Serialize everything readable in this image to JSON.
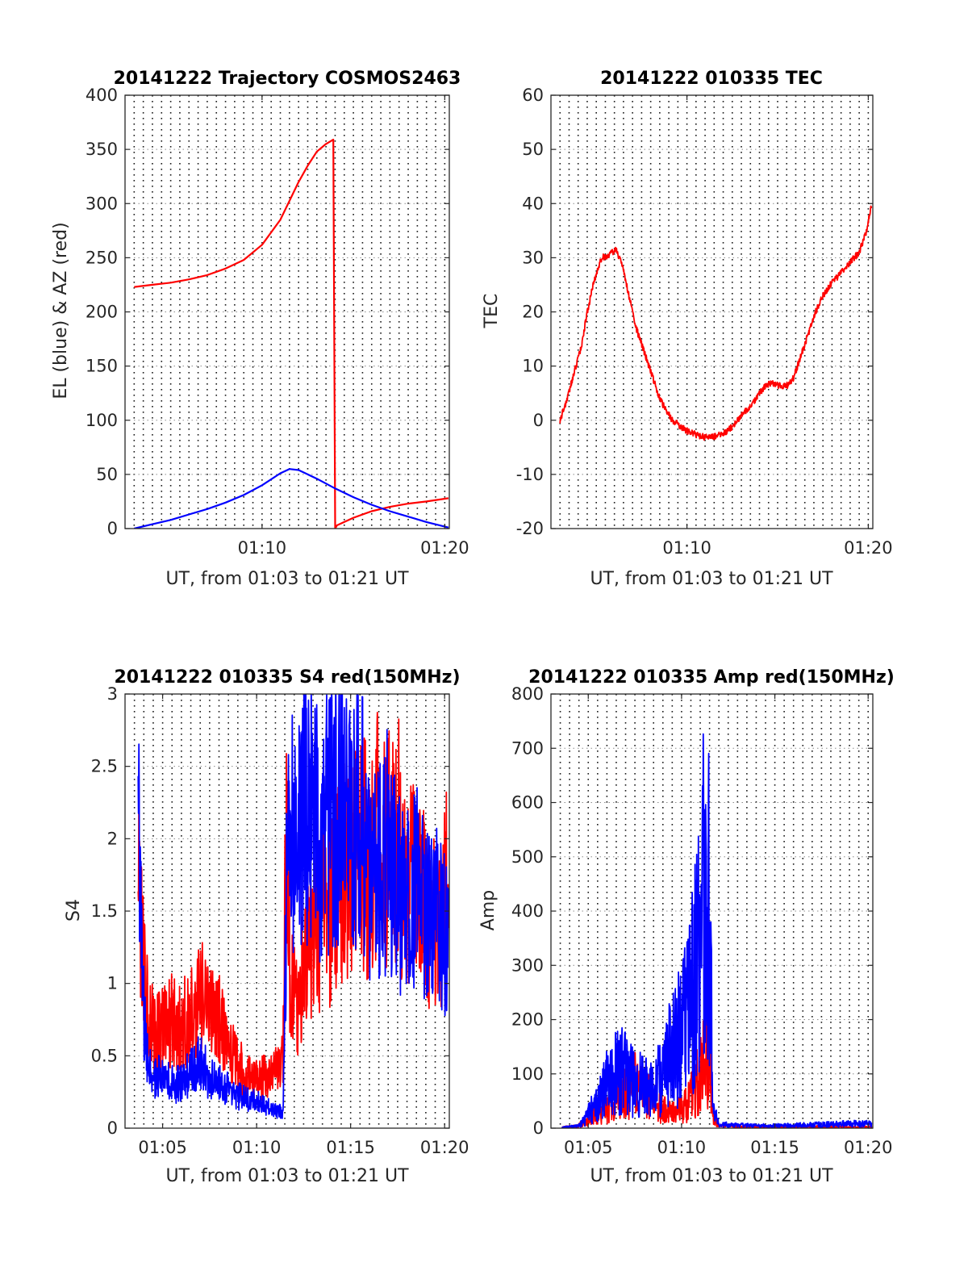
{
  "chart_data": [
    {
      "type": "line",
      "title": "20141222 Trajectory COSMOS2463",
      "xlabel": "UT, from 01:03 to 01:21 UT",
      "ylabel": "EL (blue) & AZ (red)",
      "xlim": [
        62.5,
        80.25
      ],
      "ylim": [
        0,
        400
      ],
      "xticks": [
        70,
        80
      ],
      "xtick_labels": [
        "01:10",
        "01:20"
      ],
      "yticks": [
        0,
        50,
        100,
        150,
        200,
        250,
        300,
        350,
        400
      ],
      "ytick_labels": [
        "0",
        "50",
        "100",
        "150",
        "200",
        "250",
        "300",
        "350",
        "400"
      ],
      "grid": "dotted vertical every 30 s, dotted horizontal at y ticks",
      "series": [
        {
          "color": "#ff0000",
          "x": [
            63,
            64,
            65,
            66,
            67,
            68,
            69,
            70,
            71,
            72,
            72.5,
            73,
            73.5,
            73.9,
            74.0,
            74.1,
            75,
            76,
            77,
            78,
            79,
            80.2
          ],
          "y": [
            223,
            225,
            227,
            230,
            234,
            240,
            248,
            262,
            285,
            320,
            335,
            348,
            355,
            359,
            0,
            3,
            10,
            16,
            20,
            23,
            25,
            28
          ]
        },
        {
          "color": "#0000ff",
          "x": [
            63,
            64,
            65,
            66,
            67,
            68,
            69,
            70,
            71,
            71.5,
            72,
            73,
            74,
            75,
            76,
            77,
            78,
            79,
            80.2
          ],
          "y": [
            0,
            4,
            8,
            13,
            18,
            24,
            31,
            40,
            51,
            55,
            54,
            46,
            37,
            29,
            22,
            16,
            11,
            6,
            1
          ]
        }
      ]
    },
    {
      "type": "line",
      "title": "20141222 010335 TEC",
      "xlabel": "UT, from 01:03 to 01:21 UT",
      "ylabel": "TEC",
      "xlim": [
        62.5,
        80.25
      ],
      "ylim": [
        -20,
        60
      ],
      "xticks": [
        70,
        80
      ],
      "xtick_labels": [
        "01:10",
        "01:20"
      ],
      "yticks": [
        -20,
        -10,
        0,
        10,
        20,
        30,
        40,
        50,
        60
      ],
      "ytick_labels": [
        "-20",
        "-10",
        "0",
        "10",
        "20",
        "30",
        "40",
        "50",
        "60"
      ],
      "grid": "dotted vertical every 30 s, dotted horizontal at y ticks",
      "series": [
        {
          "color": "#ff0000",
          "x": [
            63.0,
            63.4,
            63.8,
            64.2,
            64.5,
            64.9,
            65.3,
            65.7,
            66.1,
            66.4,
            66.8,
            67.2,
            67.6,
            68.0,
            68.4,
            68.8,
            69.2,
            69.6,
            70.0,
            70.4,
            70.8,
            71.2,
            71.6,
            72.0,
            72.4,
            72.8,
            73.2,
            73.6,
            74.0,
            74.4,
            74.8,
            75.2,
            75.6,
            75.9,
            76.3,
            76.7,
            77.1,
            77.5,
            77.9,
            78.3,
            78.7,
            79.1,
            79.5,
            79.9,
            80.2
          ],
          "y": [
            0,
            4,
            9,
            14,
            20,
            26,
            30,
            30.5,
            31.5,
            29,
            23,
            17,
            13,
            9,
            5,
            2,
            0,
            -1,
            -2,
            -2.5,
            -3,
            -3.2,
            -3,
            -2.5,
            -1.5,
            0,
            1.5,
            3,
            5,
            6.5,
            6.8,
            6.2,
            6.5,
            8,
            12,
            16,
            20,
            23,
            25,
            26.5,
            28,
            29.5,
            31,
            35,
            40
          ]
        }
      ]
    },
    {
      "type": "line",
      "title": "20141222 010335 S4 red(150MHz)",
      "xlabel": "UT, from 01:03 to 01:21 UT",
      "ylabel": "S4",
      "xlim": [
        63.0,
        80.25
      ],
      "ylim": [
        0,
        3
      ],
      "xticks": [
        65,
        70,
        75,
        80
      ],
      "xtick_labels": [
        "01:05",
        "01:10",
        "01:15",
        "01:20"
      ],
      "yticks": [
        0,
        0.5,
        1,
        1.5,
        2,
        2.5,
        3
      ],
      "ytick_labels": [
        "0",
        "0.5",
        "1",
        "1.5",
        "2",
        "2.5",
        "3"
      ],
      "grid": "dotted vertical every 30 s, dotted horizontal at y ticks",
      "series": [
        {
          "color": "#ff0000",
          "x": [
            63.7,
            63.9,
            64.1,
            64.3,
            64.6,
            65.0,
            65.5,
            66.0,
            66.5,
            67.0,
            67.5,
            68.0,
            68.5,
            69.0,
            69.5,
            70.0,
            70.5,
            71.0,
            71.4,
            71.6,
            71.8,
            72.2,
            72.6,
            73.0,
            73.5,
            74.0,
            74.5,
            75.0,
            75.5,
            76.0,
            76.5,
            77.0,
            77.5,
            78.0,
            78.5,
            79.0,
            79.5,
            80.0,
            80.2
          ],
          "y": [
            1.8,
            1.2,
            0.9,
            0.75,
            0.65,
            0.7,
            0.75,
            0.7,
            0.8,
            0.9,
            0.85,
            0.75,
            0.55,
            0.45,
            0.35,
            0.35,
            0.35,
            0.4,
            0.45,
            2.2,
            1.0,
            0.9,
            1.1,
            1.3,
            1.4,
            1.5,
            1.7,
            1.9,
            2.0,
            1.8,
            2.1,
            1.9,
            2.0,
            1.6,
            1.8,
            1.5,
            1.4,
            1.6,
            1.8
          ]
        },
        {
          "color": "#0000ff",
          "x": [
            63.7,
            63.9,
            64.1,
            64.3,
            64.6,
            65.0,
            65.5,
            66.0,
            66.5,
            67.0,
            67.5,
            68.0,
            68.5,
            69.0,
            69.5,
            70.0,
            70.5,
            71.0,
            71.4,
            71.6,
            71.8,
            72.2,
            72.6,
            73.0,
            73.5,
            74.0,
            74.5,
            75.0,
            75.5,
            76.0,
            76.5,
            77.0,
            77.5,
            78.0,
            78.5,
            79.0,
            79.5,
            80.0,
            80.2
          ],
          "y": [
            2.6,
            1.0,
            0.55,
            0.4,
            0.35,
            0.35,
            0.3,
            0.3,
            0.4,
            0.45,
            0.35,
            0.3,
            0.28,
            0.22,
            0.2,
            0.18,
            0.15,
            0.12,
            0.11,
            1.8,
            2.0,
            2.2,
            2.3,
            2.1,
            2.0,
            2.2,
            2.3,
            2.0,
            2.2,
            1.8,
            1.7,
            2.0,
            1.6,
            1.5,
            1.7,
            1.4,
            1.5,
            1.3,
            1.5
          ]
        }
      ]
    },
    {
      "type": "line",
      "title": "20141222 010335 Amp red(150MHz)",
      "xlabel": "UT, from 01:03 to 01:21 UT",
      "ylabel": "Amp",
      "xlim": [
        63.0,
        80.25
      ],
      "ylim": [
        0,
        800
      ],
      "xticks": [
        65,
        70,
        75,
        80
      ],
      "xtick_labels": [
        "01:05",
        "01:10",
        "01:15",
        "01:20"
      ],
      "yticks": [
        0,
        100,
        200,
        300,
        400,
        500,
        600,
        700,
        800
      ],
      "ytick_labels": [
        "0",
        "100",
        "200",
        "300",
        "400",
        "500",
        "600",
        "700",
        "800"
      ],
      "grid": "dotted vertical every 30 s, dotted horizontal at y ticks",
      "series": [
        {
          "color": "#ff0000",
          "x": [
            63.6,
            64.0,
            64.4,
            64.8,
            65.2,
            65.6,
            66.0,
            66.4,
            66.8,
            67.2,
            67.6,
            68.0,
            68.4,
            68.8,
            69.2,
            69.6,
            70.0,
            70.4,
            70.8,
            71.2,
            71.5,
            71.7,
            72.0,
            73.0,
            74.0,
            75.0,
            76.0,
            77.0,
            78.0,
            79.0,
            80.2
          ],
          "y": [
            2,
            3,
            4,
            12,
            25,
            30,
            40,
            60,
            70,
            80,
            90,
            70,
            60,
            40,
            35,
            30,
            40,
            55,
            90,
            150,
            170,
            25,
            5,
            3,
            3,
            2,
            2,
            3,
            3,
            2,
            3
          ]
        },
        {
          "color": "#0000ff",
          "x": [
            63.6,
            64.0,
            64.4,
            64.8,
            65.2,
            65.6,
            66.0,
            66.4,
            66.8,
            67.2,
            67.6,
            68.0,
            68.4,
            68.8,
            69.2,
            69.6,
            70.0,
            70.4,
            70.8,
            71.0,
            71.2,
            71.5,
            71.7,
            72.0,
            73.0,
            74.0,
            75.0,
            76.0,
            77.0,
            78.0,
            79.0,
            80.2
          ],
          "y": [
            2,
            3,
            4,
            15,
            40,
            60,
            90,
            110,
            120,
            100,
            90,
            85,
            75,
            100,
            130,
            170,
            200,
            230,
            330,
            400,
            480,
            430,
            40,
            8,
            6,
            5,
            5,
            6,
            7,
            8,
            9,
            9
          ]
        }
      ]
    }
  ]
}
